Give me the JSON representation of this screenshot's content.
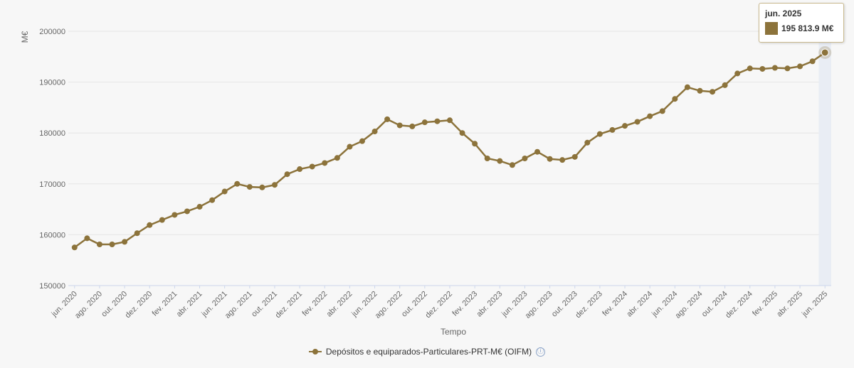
{
  "chart_data": {
    "type": "line",
    "xlabel": "Tempo",
    "ylabel": "M€",
    "ylim": [
      150000,
      200000
    ],
    "yticks": [
      "150000",
      "160000",
      "170000",
      "180000",
      "190000",
      "200000"
    ],
    "grid": true,
    "legend_position": "bottom-center",
    "x_tick_labels": [
      "jun. 2020",
      "ago. 2020",
      "out. 2020",
      "dez. 2020",
      "fev. 2021",
      "abr. 2021",
      "jun. 2021",
      "ago. 2021",
      "out. 2021",
      "dez. 2021",
      "fev. 2022",
      "abr. 2022",
      "jun. 2022",
      "ago. 2022",
      "out. 2022",
      "dez. 2022",
      "fev. 2023",
      "abr. 2023",
      "jun. 2023",
      "ago. 2023",
      "out. 2023",
      "dez. 2023",
      "fev. 2024",
      "abr. 2024",
      "jun. 2024",
      "ago. 2024",
      "out. 2024",
      "dez. 2024",
      "fev. 2025",
      "abr. 2025",
      "jun. 2025"
    ],
    "series": [
      {
        "name": "Depósitos e equiparados-Particulares-PRT-M€ (OIFM)",
        "color": "#8c733b",
        "values": [
          157500,
          159300,
          158100,
          158100,
          158600,
          160300,
          161900,
          162900,
          163900,
          164600,
          165500,
          166800,
          168500,
          170000,
          169400,
          169300,
          169800,
          171900,
          172900,
          173400,
          174100,
          175100,
          177300,
          178400,
          180300,
          182700,
          181500,
          181300,
          182100,
          182300,
          182500,
          180000,
          177900,
          175000,
          174500,
          173700,
          175000,
          176300,
          174900,
          174700,
          175300,
          178100,
          179800,
          180600,
          181400,
          182200,
          183300,
          184300,
          186700,
          189000,
          188300,
          188100,
          189400,
          191700,
          192700,
          192600,
          192800,
          192700,
          193100,
          194100,
          195813.9
        ]
      }
    ],
    "highlight": {
      "index": 60
    }
  },
  "tooltip": {
    "title": "jun. 2025",
    "value": "195 813.9 M€"
  },
  "legend": {
    "label": "Depósitos e equiparados-Particulares-PRT-M€ (OIFM)",
    "info_icon": "ⓘ"
  }
}
